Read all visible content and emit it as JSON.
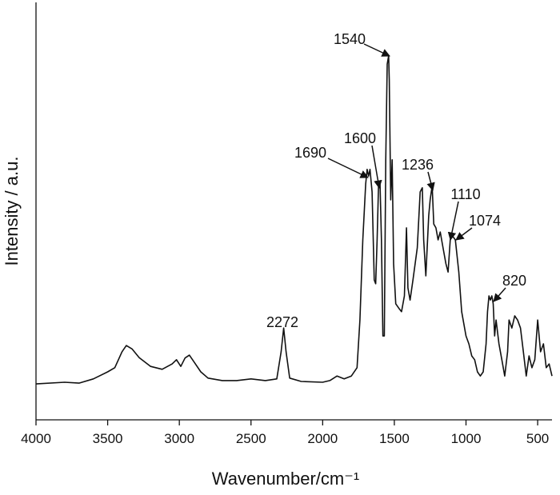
{
  "chart_data": {
    "type": "line",
    "xlabel": "Wavenumber/cm⁻¹",
    "ylabel": "Intensity / a.u.",
    "xlim": [
      4000,
      400
    ],
    "ylim": [
      0,
      100
    ],
    "xticks": [
      4000,
      3500,
      3000,
      2500,
      2000,
      1500,
      1000,
      500
    ],
    "grid": false,
    "series": [
      {
        "color": "#111111",
        "x": [
          4000,
          3800,
          3700,
          3600,
          3500,
          3450,
          3400,
          3370,
          3330,
          3280,
          3200,
          3120,
          3050,
          3020,
          2990,
          2960,
          2930,
          2900,
          2850,
          2800,
          2700,
          2600,
          2500,
          2400,
          2320,
          2290,
          2272,
          2255,
          2230,
          2150,
          2000,
          1950,
          1900,
          1850,
          1800,
          1760,
          1740,
          1720,
          1700,
          1690,
          1680,
          1670,
          1655,
          1640,
          1630,
          1620,
          1610,
          1600,
          1590,
          1580,
          1570,
          1560,
          1550,
          1540,
          1535,
          1525,
          1515,
          1505,
          1490,
          1470,
          1450,
          1430,
          1415,
          1405,
          1390,
          1370,
          1340,
          1320,
          1305,
          1295,
          1280,
          1260,
          1250,
          1236,
          1225,
          1210,
          1195,
          1180,
          1160,
          1140,
          1125,
          1110,
          1095,
          1074,
          1050,
          1030,
          1000,
          980,
          960,
          940,
          920,
          900,
          880,
          860,
          850,
          840,
          830,
          820,
          810,
          800,
          790,
          770,
          750,
          730,
          710,
          700,
          680,
          660,
          640,
          620,
          600,
          580,
          560,
          540,
          520,
          500,
          480,
          460,
          440,
          420,
          400
        ],
        "values": [
          8.6,
          9.0,
          8.8,
          9.8,
          11.5,
          12.5,
          16.3,
          17.8,
          17.0,
          14.9,
          12.8,
          12.1,
          13.4,
          14.4,
          12.8,
          14.8,
          15.5,
          14.0,
          11.5,
          10.0,
          9.4,
          9.4,
          9.8,
          9.4,
          9.8,
          16.3,
          22.0,
          16.3,
          10.0,
          9.2,
          9.0,
          9.4,
          10.5,
          9.8,
          10.5,
          12.5,
          23.9,
          43.1,
          56.5,
          60.0,
          58.4,
          60.0,
          54.6,
          33.5,
          32.6,
          43.1,
          56.5,
          56.9,
          43.1,
          20.1,
          20.1,
          62.3,
          85.2,
          87.2,
          81.4,
          52.7,
          62.3,
          37.4,
          27.8,
          26.8,
          25.9,
          29.7,
          46.0,
          31.6,
          28.7,
          33.5,
          41.2,
          54.6,
          55.6,
          43.1,
          34.5,
          48.9,
          52.7,
          56.1,
          46.9,
          46.0,
          43.1,
          45.0,
          41.2,
          37.4,
          35.4,
          43.1,
          44.1,
          43.1,
          35.4,
          25.9,
          20.1,
          18.2,
          15.3,
          14.4,
          11.5,
          10.5,
          11.5,
          18.2,
          25.9,
          29.7,
          28.7,
          29.7,
          27.8,
          20.1,
          23.9,
          18.2,
          14.4,
          10.5,
          16.3,
          23.9,
          22.0,
          24.9,
          23.9,
          22.0,
          16.3,
          10.5,
          15.3,
          12.5,
          14.4,
          23.9,
          16.3,
          18.2,
          12.5,
          13.4,
          10.5
        ]
      }
    ],
    "annotations": [
      {
        "x": 1540
      },
      {
        "x": 1690
      },
      {
        "x": 1600
      },
      {
        "x": 1236
      },
      {
        "x": 1110
      },
      {
        "x": 1074
      },
      {
        "x": 820
      },
      {
        "x": 2272
      }
    ]
  }
}
